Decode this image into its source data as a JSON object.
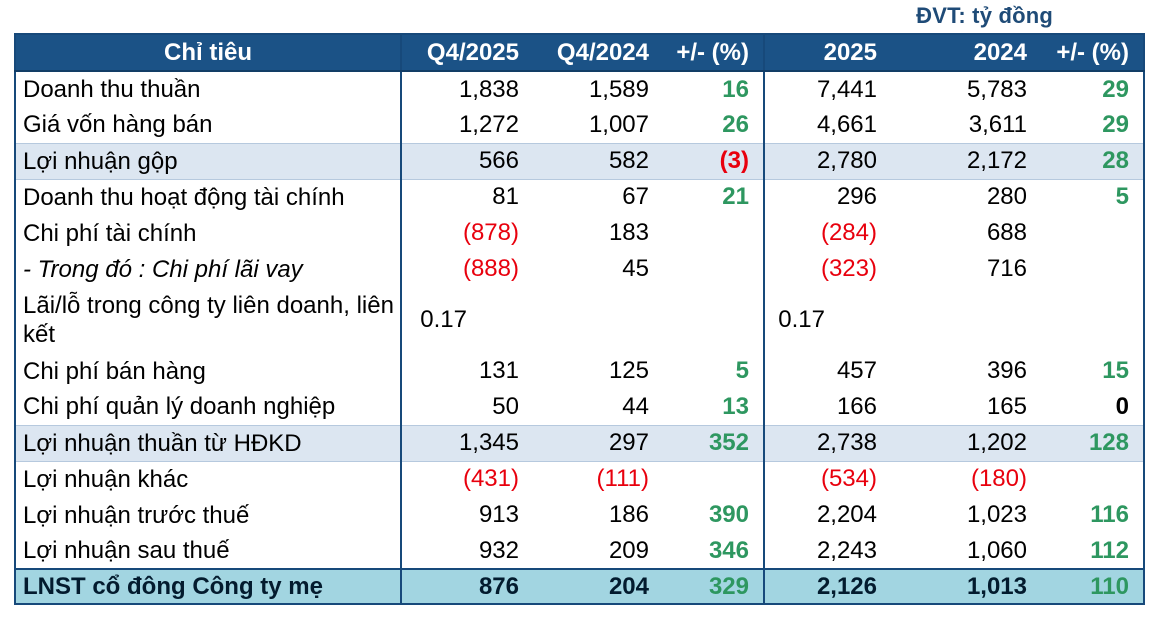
{
  "meta": {
    "unit_label": "ĐVT: tỷ đồng"
  },
  "colors": {
    "header_bg": "#1b5286",
    "table_border": "#17497a",
    "highlight_row_bg": "#dce6f1",
    "total_row_bg": "#a2d5e1",
    "positive_green": "#2e9760",
    "negative_red": "#e8000d",
    "title_blue": "#1f4b77"
  },
  "table": {
    "columns": [
      "Chỉ tiêu",
      "Q4/2025",
      "Q4/2024",
      "+/- (%)",
      "2025",
      "2024",
      "+/- (%)"
    ],
    "rows": [
      {
        "label": "Doanh thu thuần",
        "v": [
          "1,838",
          "1,589",
          "16",
          "7,441",
          "5,783",
          "29"
        ]
      },
      {
        "label": "Giá vốn hàng bán",
        "v": [
          "1,272",
          "1,007",
          "26",
          "4,661",
          "3,611",
          "29"
        ]
      },
      {
        "label": "Lợi nhuận gộp",
        "style": "hl",
        "v": [
          "566",
          "582",
          "(3)",
          "2,780",
          "2,172",
          "28"
        ]
      },
      {
        "label": "Doanh thu hoạt động tài chính",
        "v": [
          "81",
          "67",
          "21",
          "296",
          "280",
          "5"
        ]
      },
      {
        "label": "Chi phí tài chính",
        "v": [
          "(878)",
          "183",
          "",
          "(284)",
          "688",
          ""
        ]
      },
      {
        "label": "- Trong đó : Chi phí lãi vay",
        "italic": true,
        "v": [
          "(888)",
          "45",
          "",
          "(323)",
          "716",
          ""
        ]
      },
      {
        "label": "Lãi/lỗ trong công ty liên doanh, liên kết",
        "tall": true,
        "v": [
          "0.17",
          "",
          "",
          "0.17",
          "",
          ""
        ]
      },
      {
        "label": "Chi phí bán hàng",
        "v": [
          "131",
          "125",
          "5",
          "457",
          "396",
          "15"
        ]
      },
      {
        "label": "Chi phí quản lý doanh nghiệp",
        "v": [
          "50",
          "44",
          "13",
          "166",
          "165",
          "0"
        ]
      },
      {
        "label": "Lợi nhuận thuần từ HĐKD",
        "style": "hl",
        "v": [
          "1,345",
          "297",
          "352",
          "2,738",
          "1,202",
          "128"
        ]
      },
      {
        "label": "Lợi nhuận khác",
        "v": [
          "(431)",
          "(111)",
          "",
          "(534)",
          "(180)",
          ""
        ]
      },
      {
        "label": "Lợi nhuận trước thuế",
        "v": [
          "913",
          "186",
          "390",
          "2,204",
          "1,023",
          "116"
        ]
      },
      {
        "label": "Lợi nhuận sau thuế",
        "v": [
          "932",
          "209",
          "346",
          "2,243",
          "1,060",
          "112"
        ]
      },
      {
        "label": "LNST cổ đông Công ty mẹ",
        "style": "total",
        "v": [
          "876",
          "204",
          "329",
          "2,126",
          "1,013",
          "110"
        ]
      }
    ]
  }
}
